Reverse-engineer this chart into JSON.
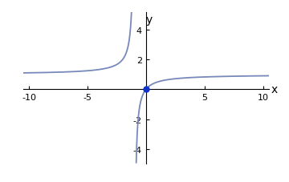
{
  "xlabel": "x",
  "ylabel": "y",
  "xlim": [
    -10.5,
    10.5
  ],
  "ylim": [
    -5.0,
    5.2
  ],
  "xticks": [
    -10,
    -5,
    5,
    10
  ],
  "yticks": [
    -4,
    -2,
    2,
    4
  ],
  "curve_color": "#7788bb",
  "dot_color": "#1133cc",
  "dot_x": 0,
  "dot_y": 0,
  "dot_size": 5,
  "asymptote": 0.0,
  "background_color": "#ffffff",
  "line_width": 1.3,
  "fig_width": 3.6,
  "fig_height": 2.28,
  "dpi": 100
}
